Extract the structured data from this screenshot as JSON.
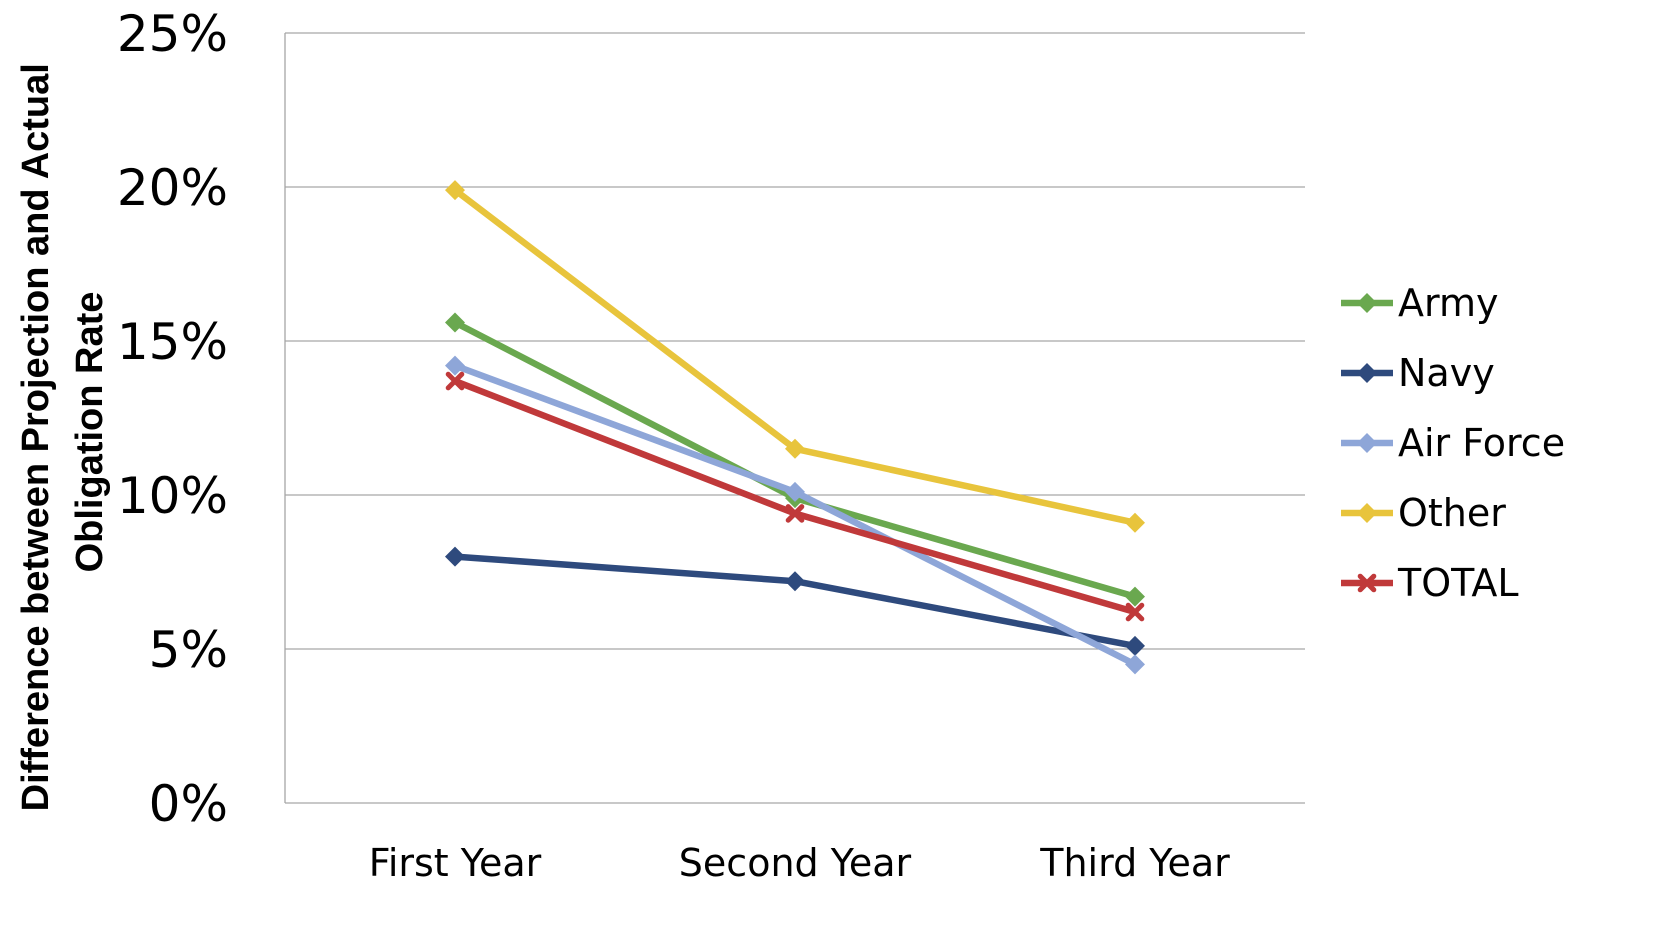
{
  "chart_data": {
    "type": "line",
    "title": "",
    "xlabel": "",
    "ylabel": "Difference between Projection and Actual Obligation Rate",
    "ylabel_lines": [
      "Difference between Projection and Actual",
      "Obligation Rate"
    ],
    "categories": [
      "First Year",
      "Second Year",
      "Third Year"
    ],
    "ylim": [
      0,
      25
    ],
    "yticks": [
      0,
      5,
      10,
      15,
      20,
      25
    ],
    "ytick_labels": [
      "0%",
      "5%",
      "10%",
      "15%",
      "20%",
      "25%"
    ],
    "grid": true,
    "legend_position": "right",
    "series": [
      {
        "name": "Army",
        "values": [
          15.6,
          9.9,
          6.7
        ],
        "color": "#6aa84f",
        "marker": "diamond"
      },
      {
        "name": "Navy",
        "values": [
          8.0,
          7.2,
          5.1
        ],
        "color": "#2e4a7d",
        "marker": "diamond"
      },
      {
        "name": "Air Force",
        "values": [
          14.2,
          10.1,
          4.5
        ],
        "color": "#8ea6d8",
        "marker": "diamond"
      },
      {
        "name": "Other",
        "values": [
          19.9,
          11.5,
          9.1
        ],
        "color": "#e8c43c",
        "marker": "diamond"
      },
      {
        "name": "TOTAL",
        "values": [
          13.7,
          9.4,
          6.2
        ],
        "color": "#c0393a",
        "marker": "x"
      }
    ]
  }
}
